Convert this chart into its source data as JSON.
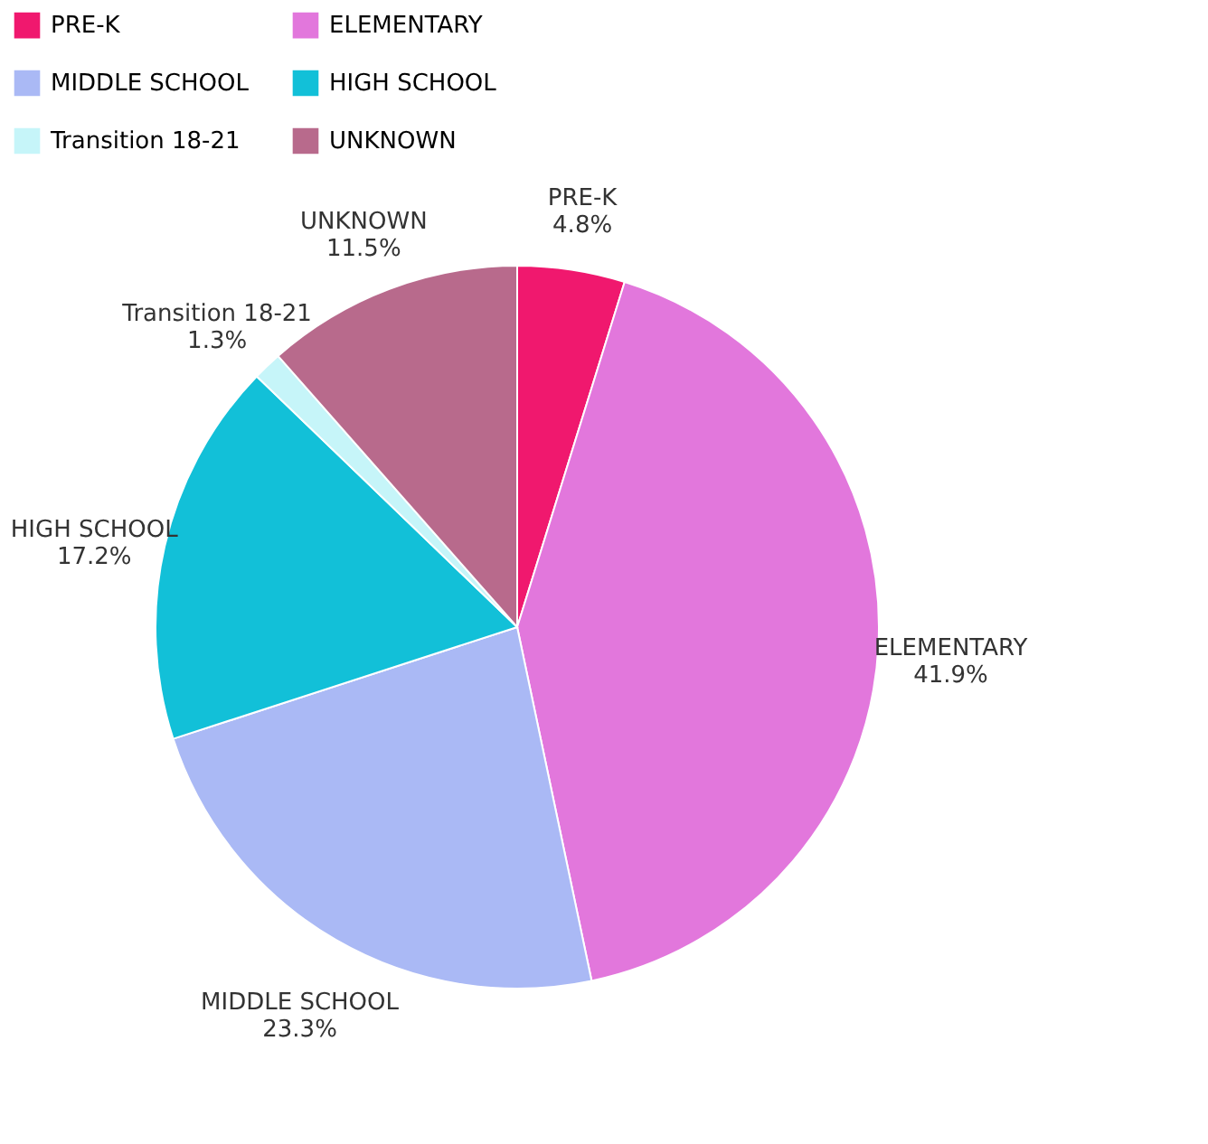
{
  "chart_data": {
    "type": "pie",
    "categories": [
      "PRE-K",
      "ELEMENTARY",
      "MIDDLE SCHOOL",
      "HIGH SCHOOL",
      "Transition 18-21",
      "UNKNOWN"
    ],
    "values": [
      4.8,
      41.9,
      23.3,
      17.2,
      1.3,
      11.5
    ],
    "colors": [
      "#f0186e",
      "#e277dc",
      "#aab9f5",
      "#12c0d8",
      "#c6f5f9",
      "#b86a8c"
    ],
    "value_labels": [
      "4.8%",
      "41.9%",
      "23.3%",
      "17.2%",
      "1.3%",
      "11.5%"
    ],
    "legend": "top"
  }
}
